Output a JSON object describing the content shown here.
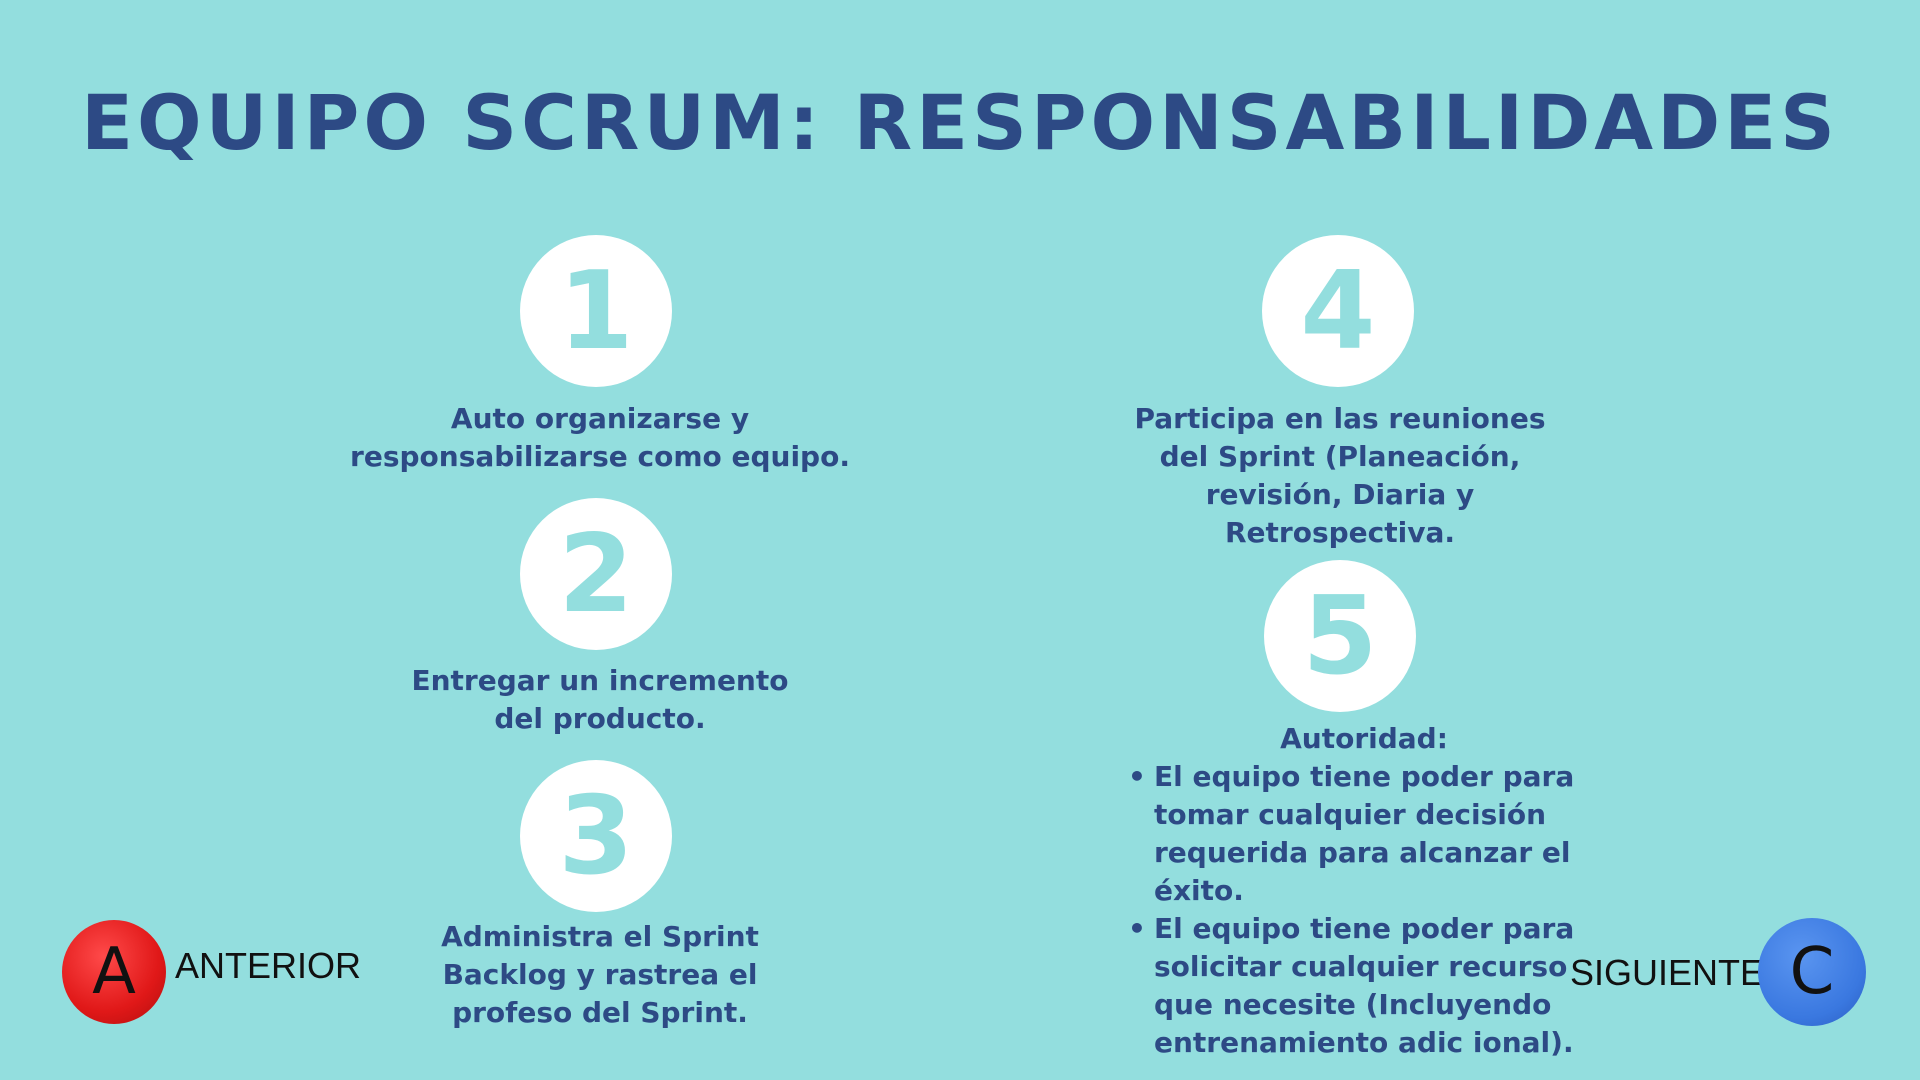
{
  "title": "EQUIPO SCRUM: RESPONSABILIDADES",
  "items": [
    {
      "number": "1",
      "text_lines": [
        "Auto organizarse y",
        "responsabilizarse como equipo."
      ]
    },
    {
      "number": "2",
      "text_lines": [
        "Entregar un incremento",
        "del producto."
      ]
    },
    {
      "number": "3",
      "text_lines": [
        "Administra el Sprint",
        "Backlog y rastrea el",
        "profeso del Sprint."
      ]
    },
    {
      "number": "4",
      "text_lines": [
        "Participa en las reuniones",
        "del Sprint (Planeación,",
        "revisión, Diaria y",
        "Retrospectiva."
      ]
    },
    {
      "number": "5",
      "heading": "Autoridad:",
      "bullets": [
        [
          "El equipo tiene poder para",
          "tomar cualquier decisión",
          "requerida para alcanzar el",
          "éxito."
        ],
        [
          "El equipo tiene poder para",
          "solicitar cualquier recurso",
          "que necesite (Incluyendo",
          "entrenamiento adic ional)."
        ]
      ]
    }
  ],
  "nav": {
    "previous": {
      "icon_letter": "A",
      "label": "ANTERIOR",
      "color": "#e01818"
    },
    "next": {
      "icon_letter": "C",
      "label": "SIGUIENTE",
      "color": "#3a78e0"
    }
  },
  "colors": {
    "background": "#93dede",
    "text": "#2d4a85",
    "badge": "#ffffff"
  }
}
